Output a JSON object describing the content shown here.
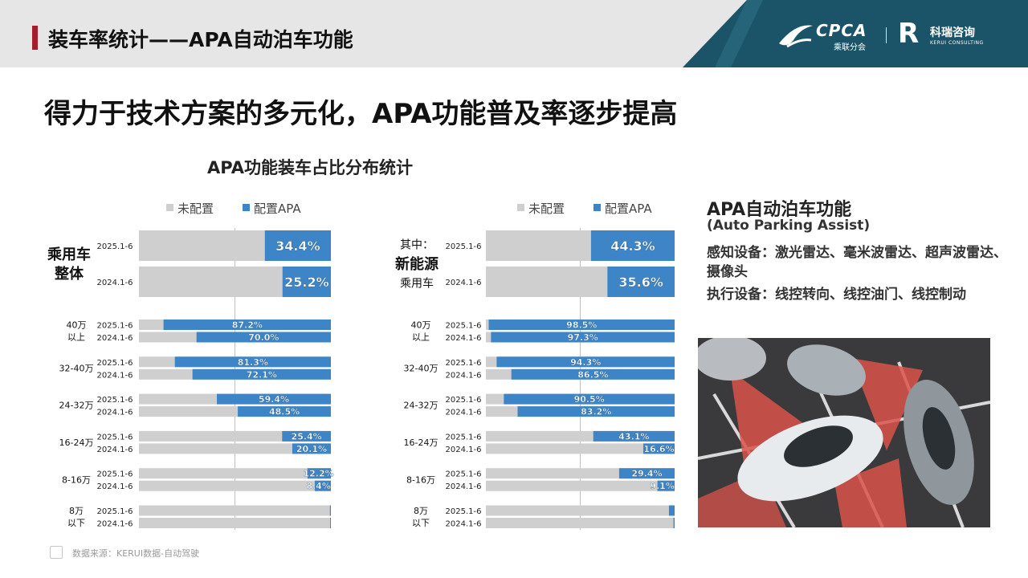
{
  "header": {
    "title": "装车率统计——APA自动泊车功能"
  },
  "logos": {
    "cpca": "CPCA",
    "cpca_sub": "乘联分会",
    "kerui_mark": "R",
    "kerui_name": "科瑞咨询",
    "kerui_en": "KERUI CONSULTING"
  },
  "headline": "得力于技术方案的多元化，APA功能普及率逐步提高",
  "chart_title": "APA功能装车占比分布统计",
  "colors": {
    "not_configured": "#cfcfcf",
    "configured": "#3d85c6",
    "accent": "#a51d2d",
    "logo_panel": "#1b5468"
  },
  "chart_data": [
    {
      "type": "bar",
      "orientation": "horizontal-stacked",
      "legend": [
        "未配置",
        "配置APA"
      ],
      "legend_position": "top-right",
      "series": [
        {
          "name": "配置APA"
        },
        {
          "name": "未配置"
        }
      ],
      "groups": [
        {
          "label": [
            "乘用车",
            "整体"
          ],
          "rows": [
            {
              "period": "2025.1-6",
              "value": 34.4
            },
            {
              "period": "2024.1-6",
              "value": 25.2
            }
          ]
        },
        {
          "label": [
            "40万",
            "以上"
          ],
          "rows": [
            {
              "period": "2025.1-6",
              "value": 87.2
            },
            {
              "period": "2024.1-6",
              "value": 70.0
            }
          ]
        },
        {
          "label": [
            "32-40万"
          ],
          "rows": [
            {
              "period": "2025.1-6",
              "value": 81.3
            },
            {
              "period": "2024.1-6",
              "value": 72.1
            }
          ]
        },
        {
          "label": [
            "24-32万"
          ],
          "rows": [
            {
              "period": "2025.1-6",
              "value": 59.4
            },
            {
              "period": "2024.1-6",
              "value": 48.5
            }
          ]
        },
        {
          "label": [
            "16-24万"
          ],
          "rows": [
            {
              "period": "2025.1-6",
              "value": 25.4
            },
            {
              "period": "2024.1-6",
              "value": 20.1
            }
          ]
        },
        {
          "label": [
            "8-16万"
          ],
          "rows": [
            {
              "period": "2025.1-6",
              "value": 12.2
            },
            {
              "period": "2024.1-6",
              "value": 8.4
            }
          ]
        },
        {
          "label": [
            "8万",
            "以下"
          ],
          "rows": [
            {
              "period": "2025.1-6",
              "value": 0.5,
              "label": ""
            },
            {
              "period": "2024.1-6",
              "value": 0.4,
              "label": ""
            }
          ]
        }
      ]
    },
    {
      "type": "bar",
      "orientation": "horizontal-stacked",
      "legend": [
        "未配置",
        "配置APA"
      ],
      "legend_position": "top-right",
      "series": [
        {
          "name": "配置APA"
        },
        {
          "name": "未配置"
        }
      ],
      "groups": [
        {
          "label": [
            "其中：",
            "新能源",
            "乘用车"
          ],
          "rows": [
            {
              "period": "2025.1-6",
              "value": 44.3
            },
            {
              "period": "2024.1-6",
              "value": 35.6
            }
          ]
        },
        {
          "label": [
            "40万",
            "以上"
          ],
          "rows": [
            {
              "period": "2025.1-6",
              "value": 98.5
            },
            {
              "period": "2024.1-6",
              "value": 97.3
            }
          ]
        },
        {
          "label": [
            "32-40万"
          ],
          "rows": [
            {
              "period": "2025.1-6",
              "value": 94.3
            },
            {
              "period": "2024.1-6",
              "value": 86.5
            }
          ]
        },
        {
          "label": [
            "24-32万"
          ],
          "rows": [
            {
              "period": "2025.1-6",
              "value": 90.5
            },
            {
              "period": "2024.1-6",
              "value": 83.2
            }
          ]
        },
        {
          "label": [
            "16-24万"
          ],
          "rows": [
            {
              "period": "2025.1-6",
              "value": 43.1
            },
            {
              "period": "2024.1-6",
              "value": 16.6
            }
          ]
        },
        {
          "label": [
            "8-16万"
          ],
          "rows": [
            {
              "period": "2025.1-6",
              "value": 29.4
            },
            {
              "period": "2024.1-6",
              "value": 9.1
            }
          ]
        },
        {
          "label": [
            "8万",
            "以下"
          ],
          "rows": [
            {
              "period": "2025.1-6",
              "value": 3.0,
              "label": ""
            },
            {
              "period": "2024.1-6",
              "value": 0.6,
              "label": ""
            }
          ]
        }
      ]
    }
  ],
  "info": {
    "title": "APA自动泊车功能",
    "subtitle": "(Auto Parking Assist)",
    "sensing": "感知设备：激光雷达、毫米波雷达、超声波雷达、摄像头",
    "execution": "执行设备：线控转向、线控油门、线控制动"
  },
  "source": "数据来源：KERUI数据-自动驾驶"
}
